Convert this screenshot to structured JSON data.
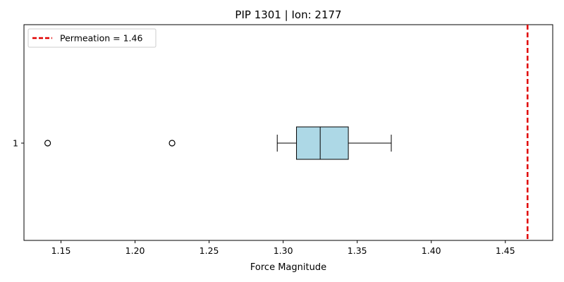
{
  "chart_data": {
    "type": "boxplot",
    "orientation": "horizontal",
    "title": "PIP 1301 | Ion: 2177",
    "xlabel": "Force Magnitude",
    "ylabel": "",
    "xlim": [
      1.125,
      1.482
    ],
    "xticks": [
      1.15,
      1.2,
      1.25,
      1.3,
      1.35,
      1.4,
      1.45
    ],
    "xtick_labels": [
      "1.15",
      "1.20",
      "1.25",
      "1.30",
      "1.35",
      "1.40",
      "1.45"
    ],
    "yticks": [
      "1"
    ],
    "grid": false,
    "legend_position": "upper-left",
    "boxes": [
      {
        "category": "1",
        "whisker_low": 1.296,
        "q1": 1.309,
        "median": 1.325,
        "q3": 1.344,
        "whisker_high": 1.373,
        "outliers": [
          1.141,
          1.225
        ],
        "fill_color": "#add8e6"
      }
    ],
    "reference_line": {
      "value": 1.465,
      "label": "Permeation = 1.46",
      "color": "#e00000",
      "style": "dashed"
    }
  }
}
